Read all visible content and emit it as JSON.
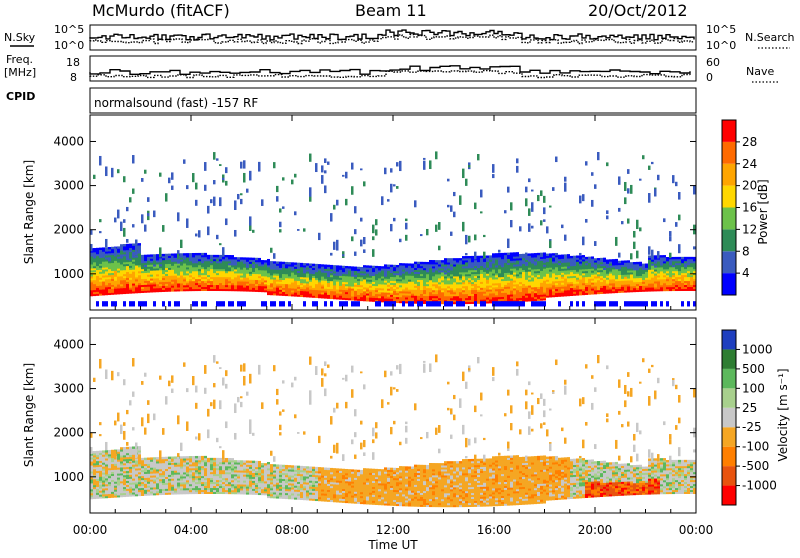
{
  "header": {
    "station": "McMurdo (fitACF)",
    "beam": "Beam 11",
    "date": "20/Oct/2012"
  },
  "summary_panels": {
    "top": {
      "left_label": "N.Sky",
      "right_label": "N.Search",
      "left_ticks": [
        "10^5",
        "10^0"
      ],
      "right_ticks": [
        "10^5",
        "10^0"
      ]
    },
    "freq": {
      "left_label_1": "Freq.",
      "left_label_2": "[MHz]",
      "left_ticks": [
        "18",
        "8"
      ],
      "right_label": "Nave",
      "right_ticks": [
        "60",
        "0"
      ]
    },
    "cpid": {
      "label": "CPID",
      "text": "normalsound (fast) -157 RF"
    }
  },
  "chart_data": [
    {
      "type": "heatmap",
      "panel": "power",
      "ylabel": "Slant Range [km]",
      "xlabel": "",
      "ylim": [
        180,
        4600
      ],
      "yticks": [
        1000,
        2000,
        3000,
        4000
      ],
      "x_ticks": [
        "00:00",
        "04:00",
        "08:00",
        "12:00",
        "16:00",
        "20:00",
        "00:00"
      ],
      "x_range_hours": [
        0,
        24
      ],
      "colorbar": {
        "label": "Power [dB]",
        "tick_labels": [
          "4",
          "8",
          "12",
          "16",
          "20",
          "24",
          "28"
        ],
        "colors": [
          "#0000ff",
          "#3a5bbf",
          "#2e8b57",
          "#6cc24a",
          "#ffd700",
          "#ffa500",
          "#ff6a00",
          "#ff0000"
        ]
      },
      "features": {
        "main_echo_band_km": [
          500,
          1300
        ],
        "scattered_echo_extent_km": [
          1300,
          3600
        ]
      }
    },
    {
      "type": "heatmap",
      "panel": "velocity",
      "ylabel": "Slant Range [km]",
      "xlabel": "Time UT",
      "ylim": [
        180,
        4600
      ],
      "yticks": [
        1000,
        2000,
        3000,
        4000
      ],
      "x_ticks": [
        "00:00",
        "04:00",
        "08:00",
        "12:00",
        "16:00",
        "20:00",
        "00:00"
      ],
      "x_range_hours": [
        0,
        24
      ],
      "colorbar": {
        "label": "Velocity [m s⁻¹]",
        "tick_labels": [
          "1000",
          "500",
          "100",
          "25",
          "-25",
          "-100",
          "-500",
          "-1000"
        ],
        "colors": [
          "#1f3fbf",
          "#2e7d32",
          "#5cb85c",
          "#a8d08d",
          "#c8c8c8",
          "#f5a623",
          "#ff7f00",
          "#e8530e",
          "#ff0000"
        ]
      }
    }
  ]
}
